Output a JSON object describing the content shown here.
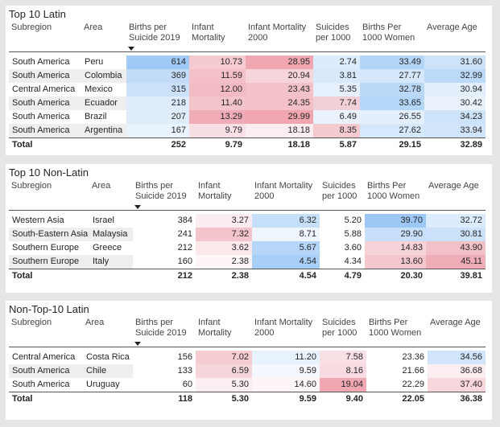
{
  "columns": [
    "Subregion",
    "Area",
    "Births per Suicide 2019",
    "Infant Mortality",
    "Infant Mortality 2000",
    "Suicides per 1000",
    "Births Per 1000 Women",
    "Average Age"
  ],
  "tables": [
    {
      "title": "Top 10 Latin",
      "rows": [
        {
          "subregion": "South America",
          "area": "Peru",
          "births_per_suicide": "614",
          "infant_mortality": "10.73",
          "infant_mortality_2000": "28.95",
          "suicides": "2.74",
          "births": "33.49",
          "age": "31.60"
        },
        {
          "subregion": "South America",
          "area": "Colombia",
          "births_per_suicide": "369",
          "infant_mortality": "11.59",
          "infant_mortality_2000": "20.94",
          "suicides": "3.81",
          "births": "27.77",
          "age": "32.99"
        },
        {
          "subregion": "Central America",
          "area": "Mexico",
          "births_per_suicide": "315",
          "infant_mortality": "12.00",
          "infant_mortality_2000": "23.43",
          "suicides": "5.35",
          "births": "32.78",
          "age": "30.94"
        },
        {
          "subregion": "South America",
          "area": "Ecuador",
          "births_per_suicide": "218",
          "infant_mortality": "11.40",
          "infant_mortality_2000": "24.35",
          "suicides": "7.74",
          "births": "33.65",
          "age": "30.42"
        },
        {
          "subregion": "South America",
          "area": "Brazil",
          "births_per_suicide": "207",
          "infant_mortality": "13.29",
          "infant_mortality_2000": "29.99",
          "suicides": "6.49",
          "births": "26.55",
          "age": "34.23"
        },
        {
          "subregion": "South America",
          "area": "Argentina",
          "births_per_suicide": "167",
          "infant_mortality": "9.79",
          "infant_mortality_2000": "18.18",
          "suicides": "8.35",
          "births": "27.62",
          "age": "33.94"
        }
      ],
      "total": {
        "label": "Total",
        "births_per_suicide": "252",
        "infant_mortality": "9.79",
        "infant_mortality_2000": "18.18",
        "suicides": "5.87",
        "births": "29.15",
        "age": "32.89"
      },
      "colors": [
        [
          "#ffffff",
          "#ffffff",
          "#9fcaf6",
          "#f5cbd1",
          "#f0a7b1",
          "#ddecfc",
          "#b3d5f8",
          "#cde3fa"
        ],
        [
          "#eeeeee",
          "#eeeeee",
          "#c2dcf8",
          "#f3c0c7",
          "#f6d5da",
          "#d7e9fb",
          "#d5e8fb",
          "#bcdaf8"
        ],
        [
          "#ffffff",
          "#ffffff",
          "#cae1f9",
          "#f2bbc3",
          "#f3c2c9",
          "#e5f0fc",
          "#bad9f8",
          "#e3effc"
        ],
        [
          "#eeeeee",
          "#eeeeee",
          "#deecfb",
          "#f4c4cb",
          "#f3c0c7",
          "#f1d1d7",
          "#b4d6f8",
          "#e9f2fd"
        ],
        [
          "#ffffff",
          "#ffffff",
          "#dfedfb",
          "#efacb6",
          "#f0a5b0",
          "#eaf3fd",
          "#e3effc",
          "#cde3fa"
        ],
        [
          "#eeeeee",
          "#eeeeee",
          "#e9f3fd",
          "#f8dfe3",
          "#fbeef0",
          "#f3cad0",
          "#d6e8fb",
          "#d0e5fa"
        ]
      ]
    },
    {
      "title": "Top 10 Non-Latin",
      "rows": [
        {
          "subregion": "Western Asia",
          "area": "Israel",
          "births_per_suicide": "384",
          "infant_mortality": "3.27",
          "infant_mortality_2000": "6.32",
          "suicides": "5.20",
          "births": "39.70",
          "age": "32.72"
        },
        {
          "subregion": "South-Eastern Asia",
          "area": "Malaysia",
          "births_per_suicide": "241",
          "infant_mortality": "7.32",
          "infant_mortality_2000": "8.71",
          "suicides": "5.88",
          "births": "29.90",
          "age": "30.81"
        },
        {
          "subregion": "Southern Europe",
          "area": "Greece",
          "births_per_suicide": "212",
          "infant_mortality": "3.62",
          "infant_mortality_2000": "5.67",
          "suicides": "3.60",
          "births": "14.83",
          "age": "43.90"
        },
        {
          "subregion": "Southern Europe",
          "area": "Italy",
          "births_per_suicide": "160",
          "infant_mortality": "2.38",
          "infant_mortality_2000": "4.54",
          "suicides": "4.34",
          "births": "13.60",
          "age": "45.11"
        }
      ],
      "total": {
        "label": "Total",
        "births_per_suicide": "212",
        "infant_mortality": "2.38",
        "infant_mortality_2000": "4.54",
        "suicides": "4.79",
        "births": "20.30",
        "age": "39.81"
      },
      "colors": [
        [
          "#ffffff",
          "#ffffff",
          "#ffffff",
          "#fbecef",
          "#c7e0f9",
          "#ffffff",
          "#9dc8f5",
          "#ddecfc"
        ],
        [
          "#eeeeee",
          "#eeeeee",
          "#ffffff",
          "#f3c4cb",
          "#eef5fd",
          "#ffffff",
          "#c7dff9",
          "#cce2fa"
        ],
        [
          "#ffffff",
          "#ffffff",
          "#ffffff",
          "#fae8eb",
          "#b5d6f8",
          "#ffffff",
          "#f6d3d9",
          "#f2c1c8"
        ],
        [
          "#eeeeee",
          "#eeeeee",
          "#ffffff",
          "#fdf5f6",
          "#a8cff7",
          "#ffffff",
          "#f4c6cd",
          "#efadb7"
        ]
      ]
    },
    {
      "title": "Non-Top-10 Latin",
      "rows": [
        {
          "subregion": "Central America",
          "area": "Costa Rica",
          "births_per_suicide": "156",
          "infant_mortality": "7.02",
          "infant_mortality_2000": "11.20",
          "suicides": "7.58",
          "births": "23.36",
          "age": "34.56"
        },
        {
          "subregion": "South America",
          "area": "Chile",
          "births_per_suicide": "133",
          "infant_mortality": "6.59",
          "infant_mortality_2000": "9.59",
          "suicides": "8.16",
          "births": "21.66",
          "age": "36.68"
        },
        {
          "subregion": "South America",
          "area": "Uruguay",
          "births_per_suicide": "60",
          "infant_mortality": "5.30",
          "infant_mortality_2000": "14.60",
          "suicides": "19.04",
          "births": "22.29",
          "age": "37.40"
        }
      ],
      "total": {
        "label": "Total",
        "births_per_suicide": "118",
        "infant_mortality": "5.30",
        "infant_mortality_2000": "9.59",
        "suicides": "9.40",
        "births": "22.05",
        "age": "36.38"
      },
      "colors": [
        [
          "#ffffff",
          "#ffffff",
          "#ffffff",
          "#f5ccd2",
          "#e8f2fc",
          "#f9e0e4",
          "#ffffff",
          "#d0e5fa"
        ],
        [
          "#eeeeee",
          "#eeeeee",
          "#ffffff",
          "#f7d6db",
          "#f4f8fe",
          "#f8dbe0",
          "#ffffff",
          "#fbeef0"
        ],
        [
          "#ffffff",
          "#ffffff",
          "#ffffff",
          "#fbeef0",
          "#fdf5f6",
          "#efa7b2",
          "#ffffff",
          "#f7d7dc"
        ]
      ]
    }
  ]
}
